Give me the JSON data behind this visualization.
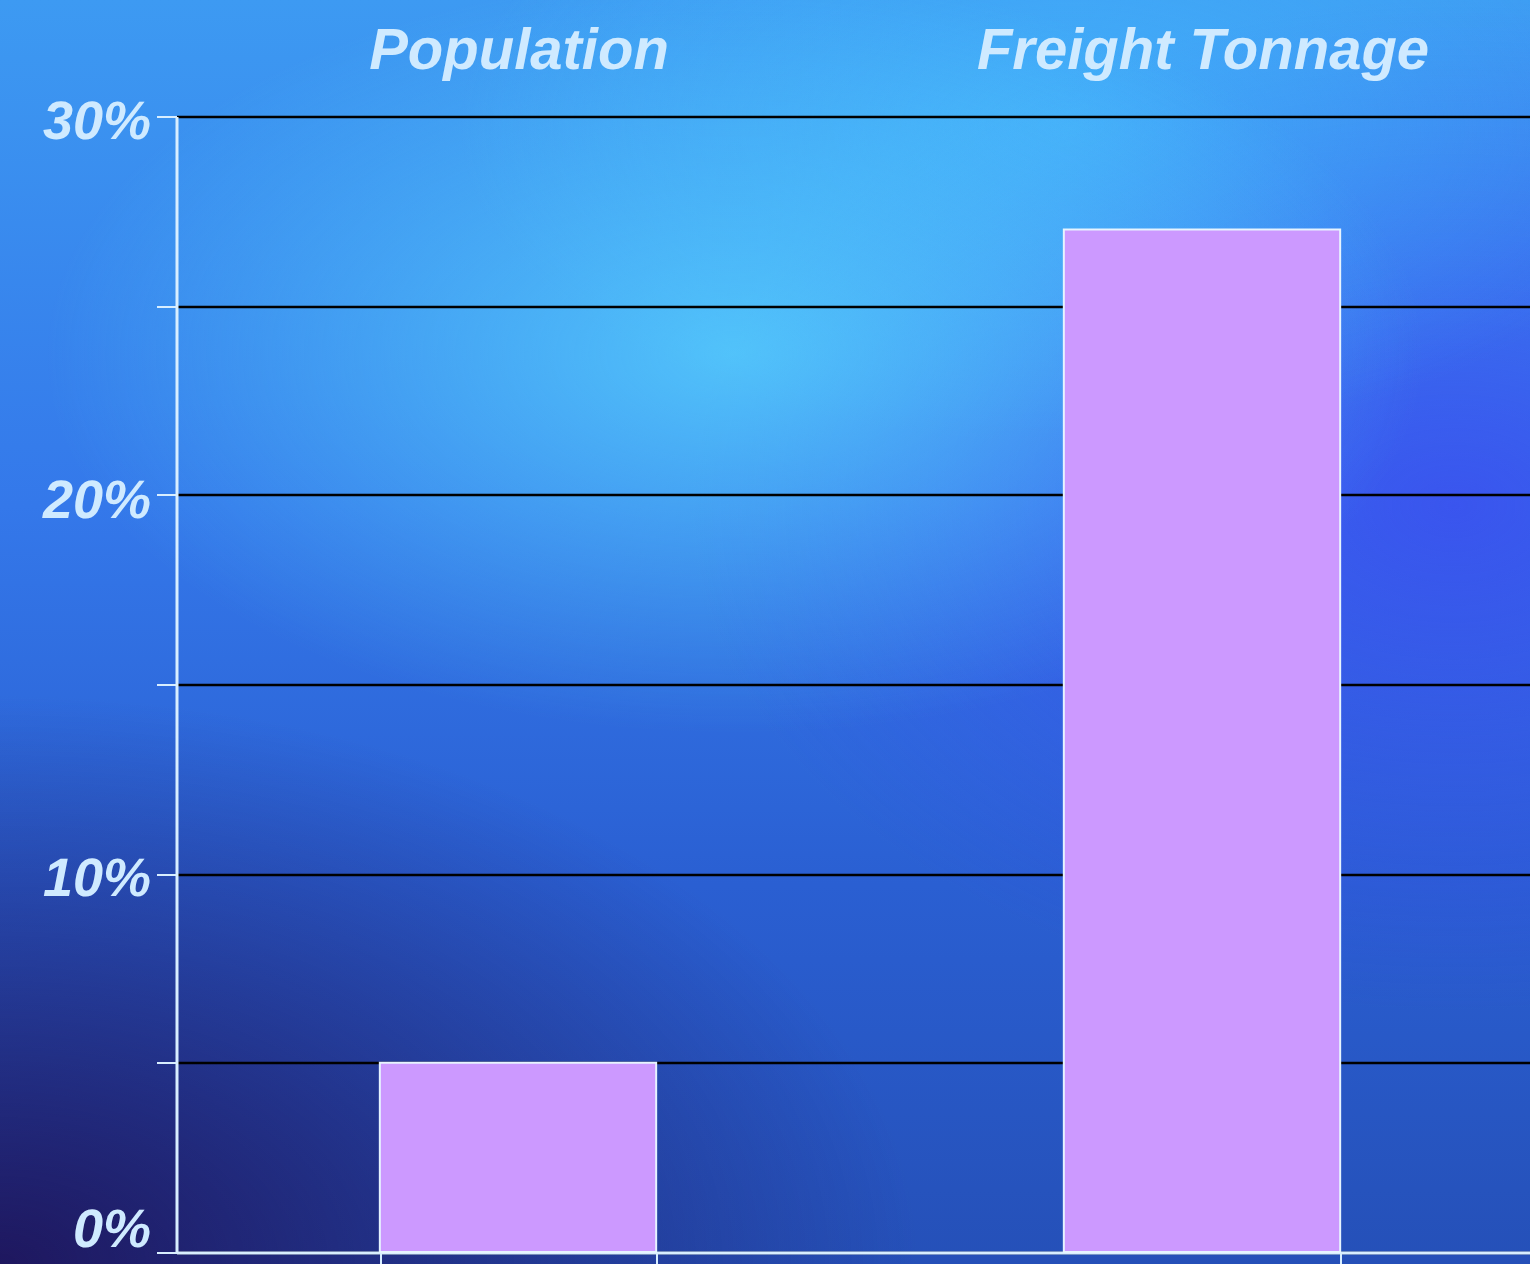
{
  "chart_data": {
    "type": "bar",
    "categories": [
      "Population",
      "Freight Tonnage"
    ],
    "values": [
      5,
      27
    ],
    "color": "#cc99ff",
    "ylim": [
      0,
      30
    ],
    "yticks": [
      {
        "value": 0,
        "label": "0%"
      },
      {
        "value": 5,
        "label": null
      },
      {
        "value": 10,
        "label": "10%"
      },
      {
        "value": 15,
        "label": null
      },
      {
        "value": 20,
        "label": "20%"
      },
      {
        "value": 25,
        "label": null
      },
      {
        "value": 30,
        "label": "30%"
      }
    ],
    "grid": "y"
  }
}
